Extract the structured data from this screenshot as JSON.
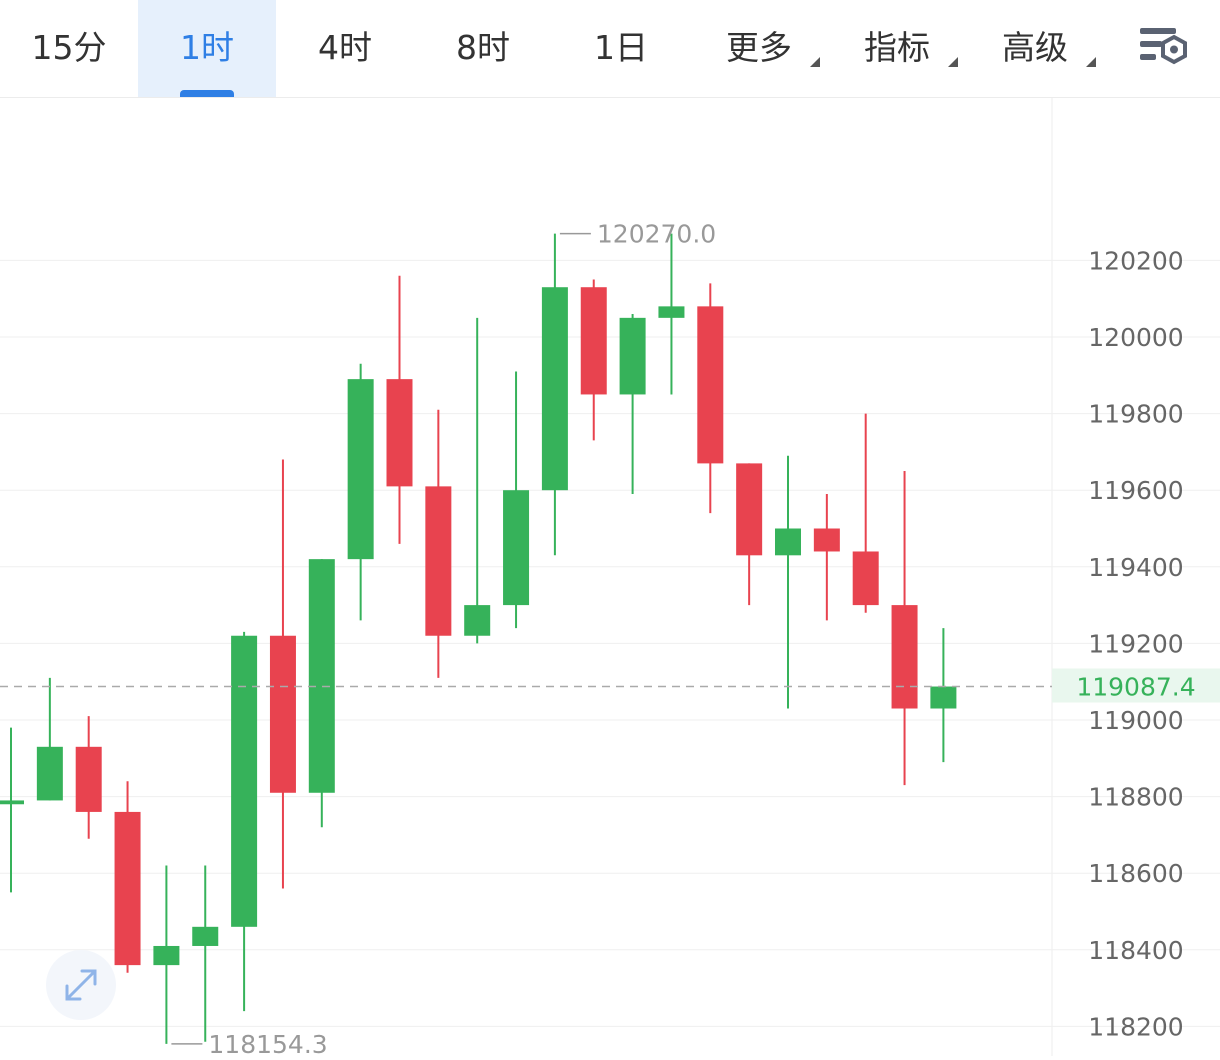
{
  "tabs": [
    {
      "label": "15分",
      "active": false,
      "dropdown": false
    },
    {
      "label": "1时",
      "active": true,
      "dropdown": false
    },
    {
      "label": "4时",
      "active": false,
      "dropdown": false
    },
    {
      "label": "8时",
      "active": false,
      "dropdown": false
    },
    {
      "label": "1日",
      "active": false,
      "dropdown": false
    },
    {
      "label": "更多",
      "active": false,
      "dropdown": true
    },
    {
      "label": "指标",
      "active": false,
      "dropdown": true
    },
    {
      "label": "高级",
      "active": false,
      "dropdown": true
    }
  ],
  "settings_icon": "chart-settings-icon",
  "expand_icon": "expand-arrows-icon",
  "colors": {
    "up": "#36b25a",
    "down": "#e8434f",
    "grid": "#efefef",
    "axis_text": "#666666",
    "marker_text": "#999999",
    "current_price": "#36b25a",
    "active_tab": "#2f7fe5"
  },
  "chart_data": {
    "type": "candlestick",
    "ylim": [
      118140,
      120500
    ],
    "y_ticks": [
      120200,
      120000,
      119800,
      119600,
      119400,
      119200,
      119000,
      118800,
      118600,
      118400,
      118200
    ],
    "grid": true,
    "current_price": 119087.4,
    "current_price_label": "119087.4",
    "high_marker": {
      "value": 120270.0,
      "label": "120270.0",
      "candle_index": 14
    },
    "low_marker": {
      "value": 118154.3,
      "label": "118154.3",
      "candle_index": 4
    },
    "candles": [
      {
        "open": 118780,
        "high": 118980,
        "low": 118550,
        "close": 118790
      },
      {
        "open": 118790,
        "high": 119110,
        "low": 118790,
        "close": 118930
      },
      {
        "open": 118930,
        "high": 119010,
        "low": 118690,
        "close": 118760
      },
      {
        "open": 118760,
        "high": 118840,
        "low": 118340,
        "close": 118360
      },
      {
        "open": 118360,
        "high": 118620,
        "low": 118154.3,
        "close": 118410
      },
      {
        "open": 118410,
        "high": 118620,
        "low": 118160,
        "close": 118460
      },
      {
        "open": 118460,
        "high": 119230,
        "low": 118240,
        "close": 119220
      },
      {
        "open": 119220,
        "high": 119680,
        "low": 118560,
        "close": 118810
      },
      {
        "open": 118810,
        "high": 119420,
        "low": 118720,
        "close": 119420
      },
      {
        "open": 119420,
        "high": 119930,
        "low": 119260,
        "close": 119890
      },
      {
        "open": 119890,
        "high": 120160,
        "low": 119460,
        "close": 119610
      },
      {
        "open": 119610,
        "high": 119810,
        "low": 119110,
        "close": 119220
      },
      {
        "open": 119220,
        "high": 120050,
        "low": 119200,
        "close": 119300
      },
      {
        "open": 119300,
        "high": 119910,
        "low": 119240,
        "close": 119600
      },
      {
        "open": 119600,
        "high": 120270,
        "low": 119430,
        "close": 120130
      },
      {
        "open": 120130,
        "high": 120150,
        "low": 119730,
        "close": 119850
      },
      {
        "open": 119850,
        "high": 120060,
        "low": 119590,
        "close": 120050
      },
      {
        "open": 120050,
        "high": 120270,
        "low": 119850,
        "close": 120080
      },
      {
        "open": 120080,
        "high": 120140,
        "low": 119540,
        "close": 119670
      },
      {
        "open": 119670,
        "high": 119670,
        "low": 119300,
        "close": 119430
      },
      {
        "open": 119430,
        "high": 119690,
        "low": 119030,
        "close": 119500
      },
      {
        "open": 119500,
        "high": 119590,
        "low": 119260,
        "close": 119440
      },
      {
        "open": 119440,
        "high": 119800,
        "low": 119280,
        "close": 119300
      },
      {
        "open": 119300,
        "high": 119650,
        "low": 118830,
        "close": 119030
      },
      {
        "open": 119030,
        "high": 119240,
        "low": 118890,
        "close": 119087.4
      }
    ]
  }
}
